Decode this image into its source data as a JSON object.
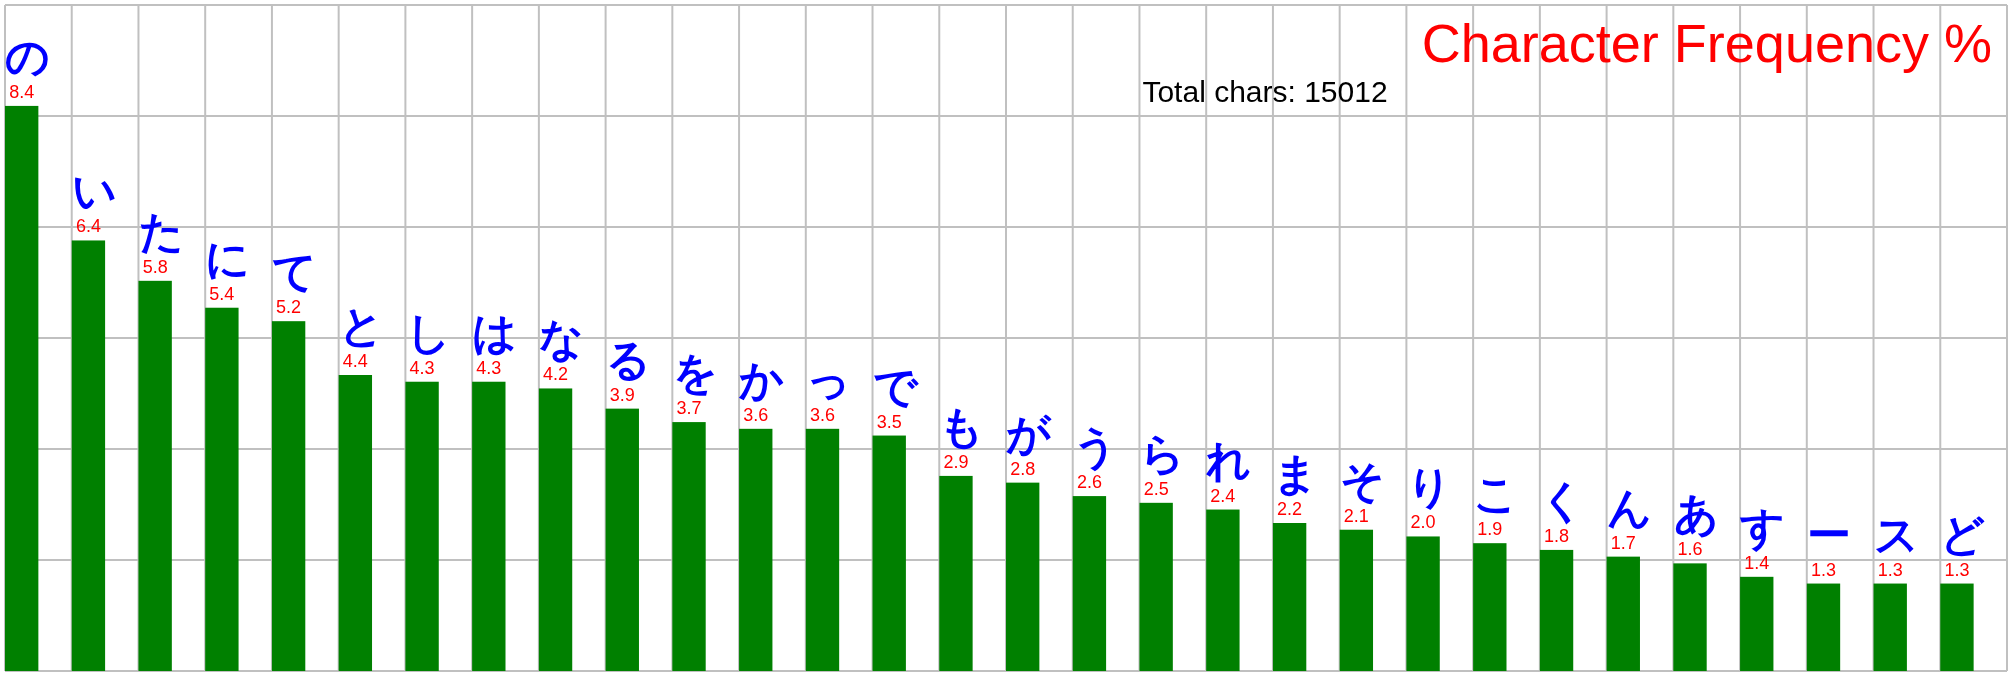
{
  "chart_data": {
    "type": "bar",
    "title": "Character Frequency %",
    "subtitle": "Total chars: 15012",
    "categories": [
      "の",
      "い",
      "た",
      "に",
      "て",
      "と",
      "し",
      "は",
      "な",
      "る",
      "を",
      "か",
      "っ",
      "で",
      "も",
      "が",
      "う",
      "ら",
      "れ",
      "ま",
      "そ",
      "り",
      "こ",
      "く",
      "ん",
      "あ",
      "す",
      "ー",
      "ス",
      "ど"
    ],
    "values": [
      8.4,
      6.4,
      5.8,
      5.4,
      5.2,
      4.4,
      4.3,
      4.3,
      4.2,
      3.9,
      3.7,
      3.6,
      3.6,
      3.5,
      2.9,
      2.8,
      2.6,
      2.5,
      2.4,
      2.2,
      2.1,
      2.0,
      1.9,
      1.8,
      1.7,
      1.6,
      1.4,
      1.3,
      1.3,
      1.3
    ],
    "value_labels": [
      "8.4",
      "6.4",
      "5.8",
      "5.4",
      "5.2",
      "4.4",
      "4.3",
      "4.3",
      "4.2",
      "3.9",
      "3.7",
      "3.6",
      "3.6",
      "3.5",
      "2.9",
      "2.8",
      "2.6",
      "2.5",
      "2.4",
      "2.2",
      "2.1",
      "2.0",
      "1.9",
      "1.8",
      "1.7",
      "1.6",
      "1.4",
      "1.3",
      "1.3",
      "1.3"
    ],
    "color": "#008000",
    "ylim": [
      0,
      9.9
    ],
    "yticks": [
      {
        "value": 0,
        "label": null
      },
      {
        "value": 1.65,
        "label": null
      },
      {
        "value": 3.3,
        "label": null
      },
      {
        "value": 4.95,
        "label": null
      },
      {
        "value": 6.6,
        "label": null
      },
      {
        "value": 8.25,
        "label": null
      },
      {
        "value": 9.9,
        "label": null
      }
    ],
    "grid": true
  }
}
